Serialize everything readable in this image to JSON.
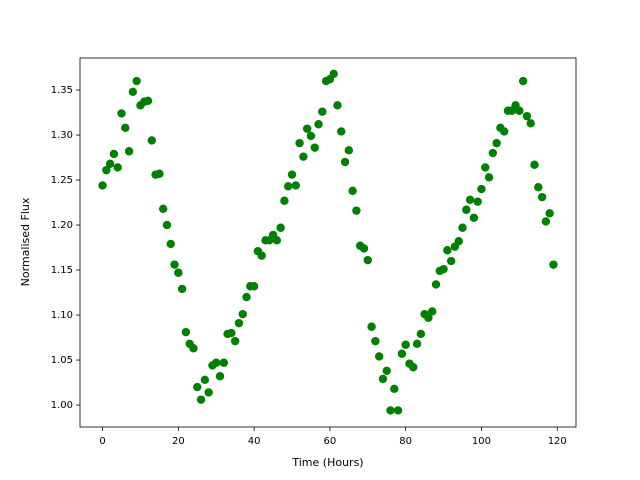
{
  "chart_data": {
    "type": "scatter",
    "xlabel": "Time (Hours)",
    "ylabel": "Normalised Flux",
    "x": [
      0,
      1,
      2,
      3,
      4,
      5,
      6,
      7,
      8,
      9,
      10,
      11,
      12,
      13,
      14,
      15,
      16,
      17,
      18,
      19,
      20,
      21,
      22,
      23,
      24,
      25,
      26,
      27,
      28,
      29,
      30,
      31,
      32,
      33,
      34,
      35,
      36,
      37,
      38,
      39,
      40,
      41,
      42,
      43,
      44,
      45,
      46,
      47,
      48,
      49,
      50,
      51,
      52,
      53,
      54,
      55,
      56,
      57,
      58,
      59,
      60,
      61,
      62,
      63,
      64,
      65,
      66,
      67,
      68,
      69,
      70,
      71,
      72,
      73,
      74,
      75,
      76,
      77,
      78,
      79,
      80,
      81,
      82,
      83,
      84,
      85,
      86,
      87,
      88,
      89,
      90,
      91,
      92,
      93,
      94,
      95,
      96,
      97,
      98,
      99,
      100,
      101,
      102,
      103,
      104,
      105,
      106,
      107,
      108,
      109,
      110,
      111,
      112,
      113,
      114,
      115,
      116,
      117,
      118,
      119
    ],
    "series": [
      {
        "color": "#008000",
        "values": [
          1.244,
          1.261,
          1.268,
          1.279,
          1.264,
          1.324,
          1.308,
          1.282,
          1.348,
          1.36,
          1.333,
          1.337,
          1.338,
          1.294,
          1.256,
          1.257,
          1.218,
          1.2,
          1.179,
          1.156,
          1.147,
          1.129,
          1.081,
          1.068,
          1.063,
          1.02,
          1.006,
          1.028,
          1.014,
          1.044,
          1.047,
          1.032,
          1.047,
          1.079,
          1.08,
          1.071,
          1.091,
          1.101,
          1.12,
          1.132,
          1.132,
          1.171,
          1.166,
          1.183,
          1.183,
          1.189,
          1.183,
          1.197,
          1.227,
          1.243,
          1.256,
          1.244,
          1.291,
          1.276,
          1.307,
          1.299,
          1.286,
          1.312,
          1.326,
          1.36,
          1.362,
          1.368,
          1.333,
          1.304,
          1.27,
          1.283,
          1.238,
          1.216,
          1.177,
          1.174,
          1.161,
          1.087,
          1.071,
          1.054,
          1.029,
          1.038,
          0.994,
          1.018,
          0.994,
          1.057,
          1.067,
          1.046,
          1.042,
          1.068,
          1.079,
          1.101,
          1.097,
          1.104,
          1.134,
          1.149,
          1.151,
          1.172,
          1.16,
          1.176,
          1.182,
          1.197,
          1.217,
          1.228,
          1.208,
          1.226,
          1.24,
          1.264,
          1.253,
          1.28,
          1.291,
          1.308,
          1.304,
          1.327,
          1.327,
          1.333,
          1.327,
          1.36,
          1.321,
          1.313,
          1.267,
          1.242,
          1.231,
          1.204,
          1.213,
          1.156
        ]
      }
    ],
    "xlim": [
      -5.95,
      124.95
    ],
    "xticks": [
      0,
      20,
      40,
      60,
      80,
      100,
      120
    ],
    "ylim": [
      0.9756,
      1.3856
    ],
    "yticks": [
      {
        "value": 1,
        "label": "1.00"
      },
      1.05,
      {
        "value": 1.1,
        "label": "1.10"
      },
      1.15,
      {
        "value": 1.2,
        "label": "1.20"
      },
      1.25,
      {
        "value": 1.3,
        "label": "1.30"
      },
      1.35
    ]
  }
}
